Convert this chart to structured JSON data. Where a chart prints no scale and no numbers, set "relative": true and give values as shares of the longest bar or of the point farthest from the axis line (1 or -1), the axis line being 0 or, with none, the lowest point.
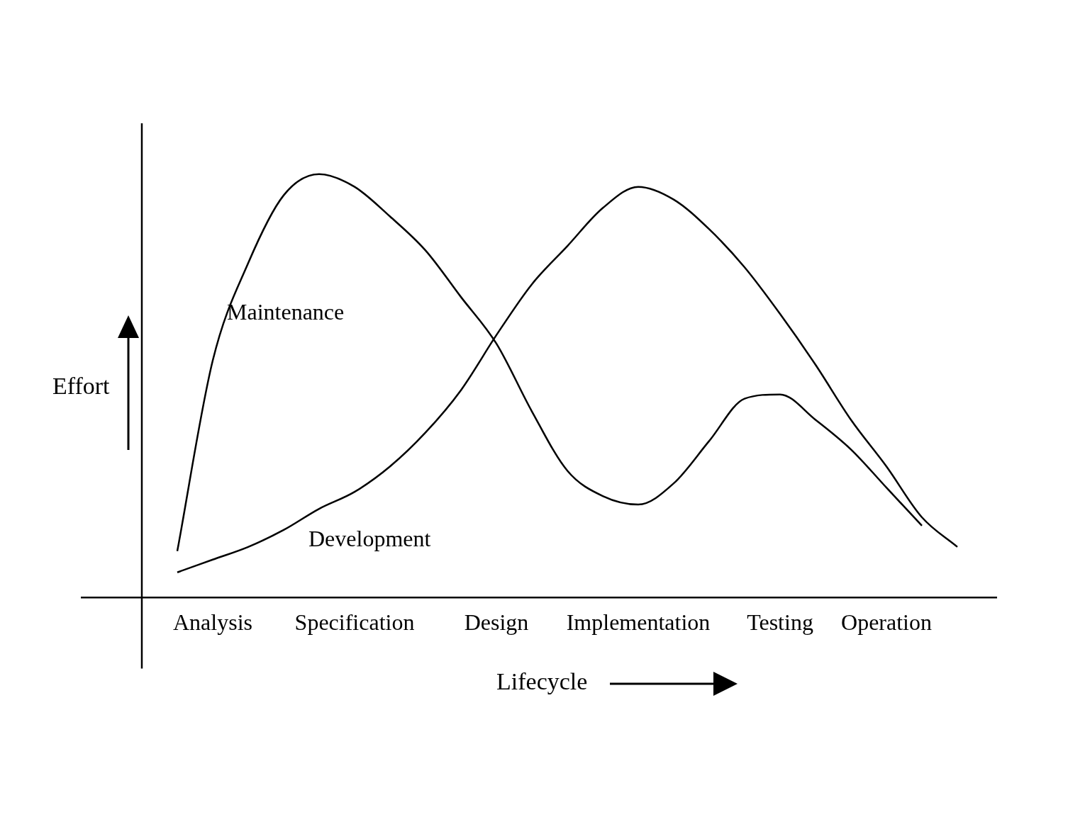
{
  "chart_data": {
    "type": "line",
    "relative": true,
    "xlabel": "Lifecycle",
    "ylabel": "Effort",
    "categories": [
      null,
      "Analysis",
      null,
      null,
      null,
      "Specification",
      null,
      null,
      null,
      "Design",
      null,
      null,
      null,
      "Implementation",
      null,
      null,
      null,
      "Testing",
      null,
      null,
      "Operation",
      null,
      null
    ],
    "grid": false,
    "legend": false,
    "marker": "none",
    "line_style": "solid",
    "series": [
      {
        "name": "Maintenance",
        "color": "#000000",
        "values": [
          0.11,
          0.56,
          0.79,
          0.95,
          1,
          0.97,
          0.9,
          0.82,
          0.71,
          0.6,
          0.44,
          0.3,
          0.24,
          0.22,
          0.27,
          0.37,
          0.47,
          0.48,
          0.42,
          0.35,
          0.26,
          0.17,
          null
        ]
      },
      {
        "name": "Development",
        "color": "#000000",
        "values": [
          0.06,
          0.09,
          0.12,
          0.16,
          0.21,
          0.25,
          0.31,
          0.39,
          0.49,
          0.62,
          0.74,
          0.83,
          0.92,
          0.97,
          0.94,
          0.87,
          0.78,
          0.67,
          0.55,
          0.42,
          0.31,
          0.19,
          0.12
        ]
      }
    ]
  }
}
